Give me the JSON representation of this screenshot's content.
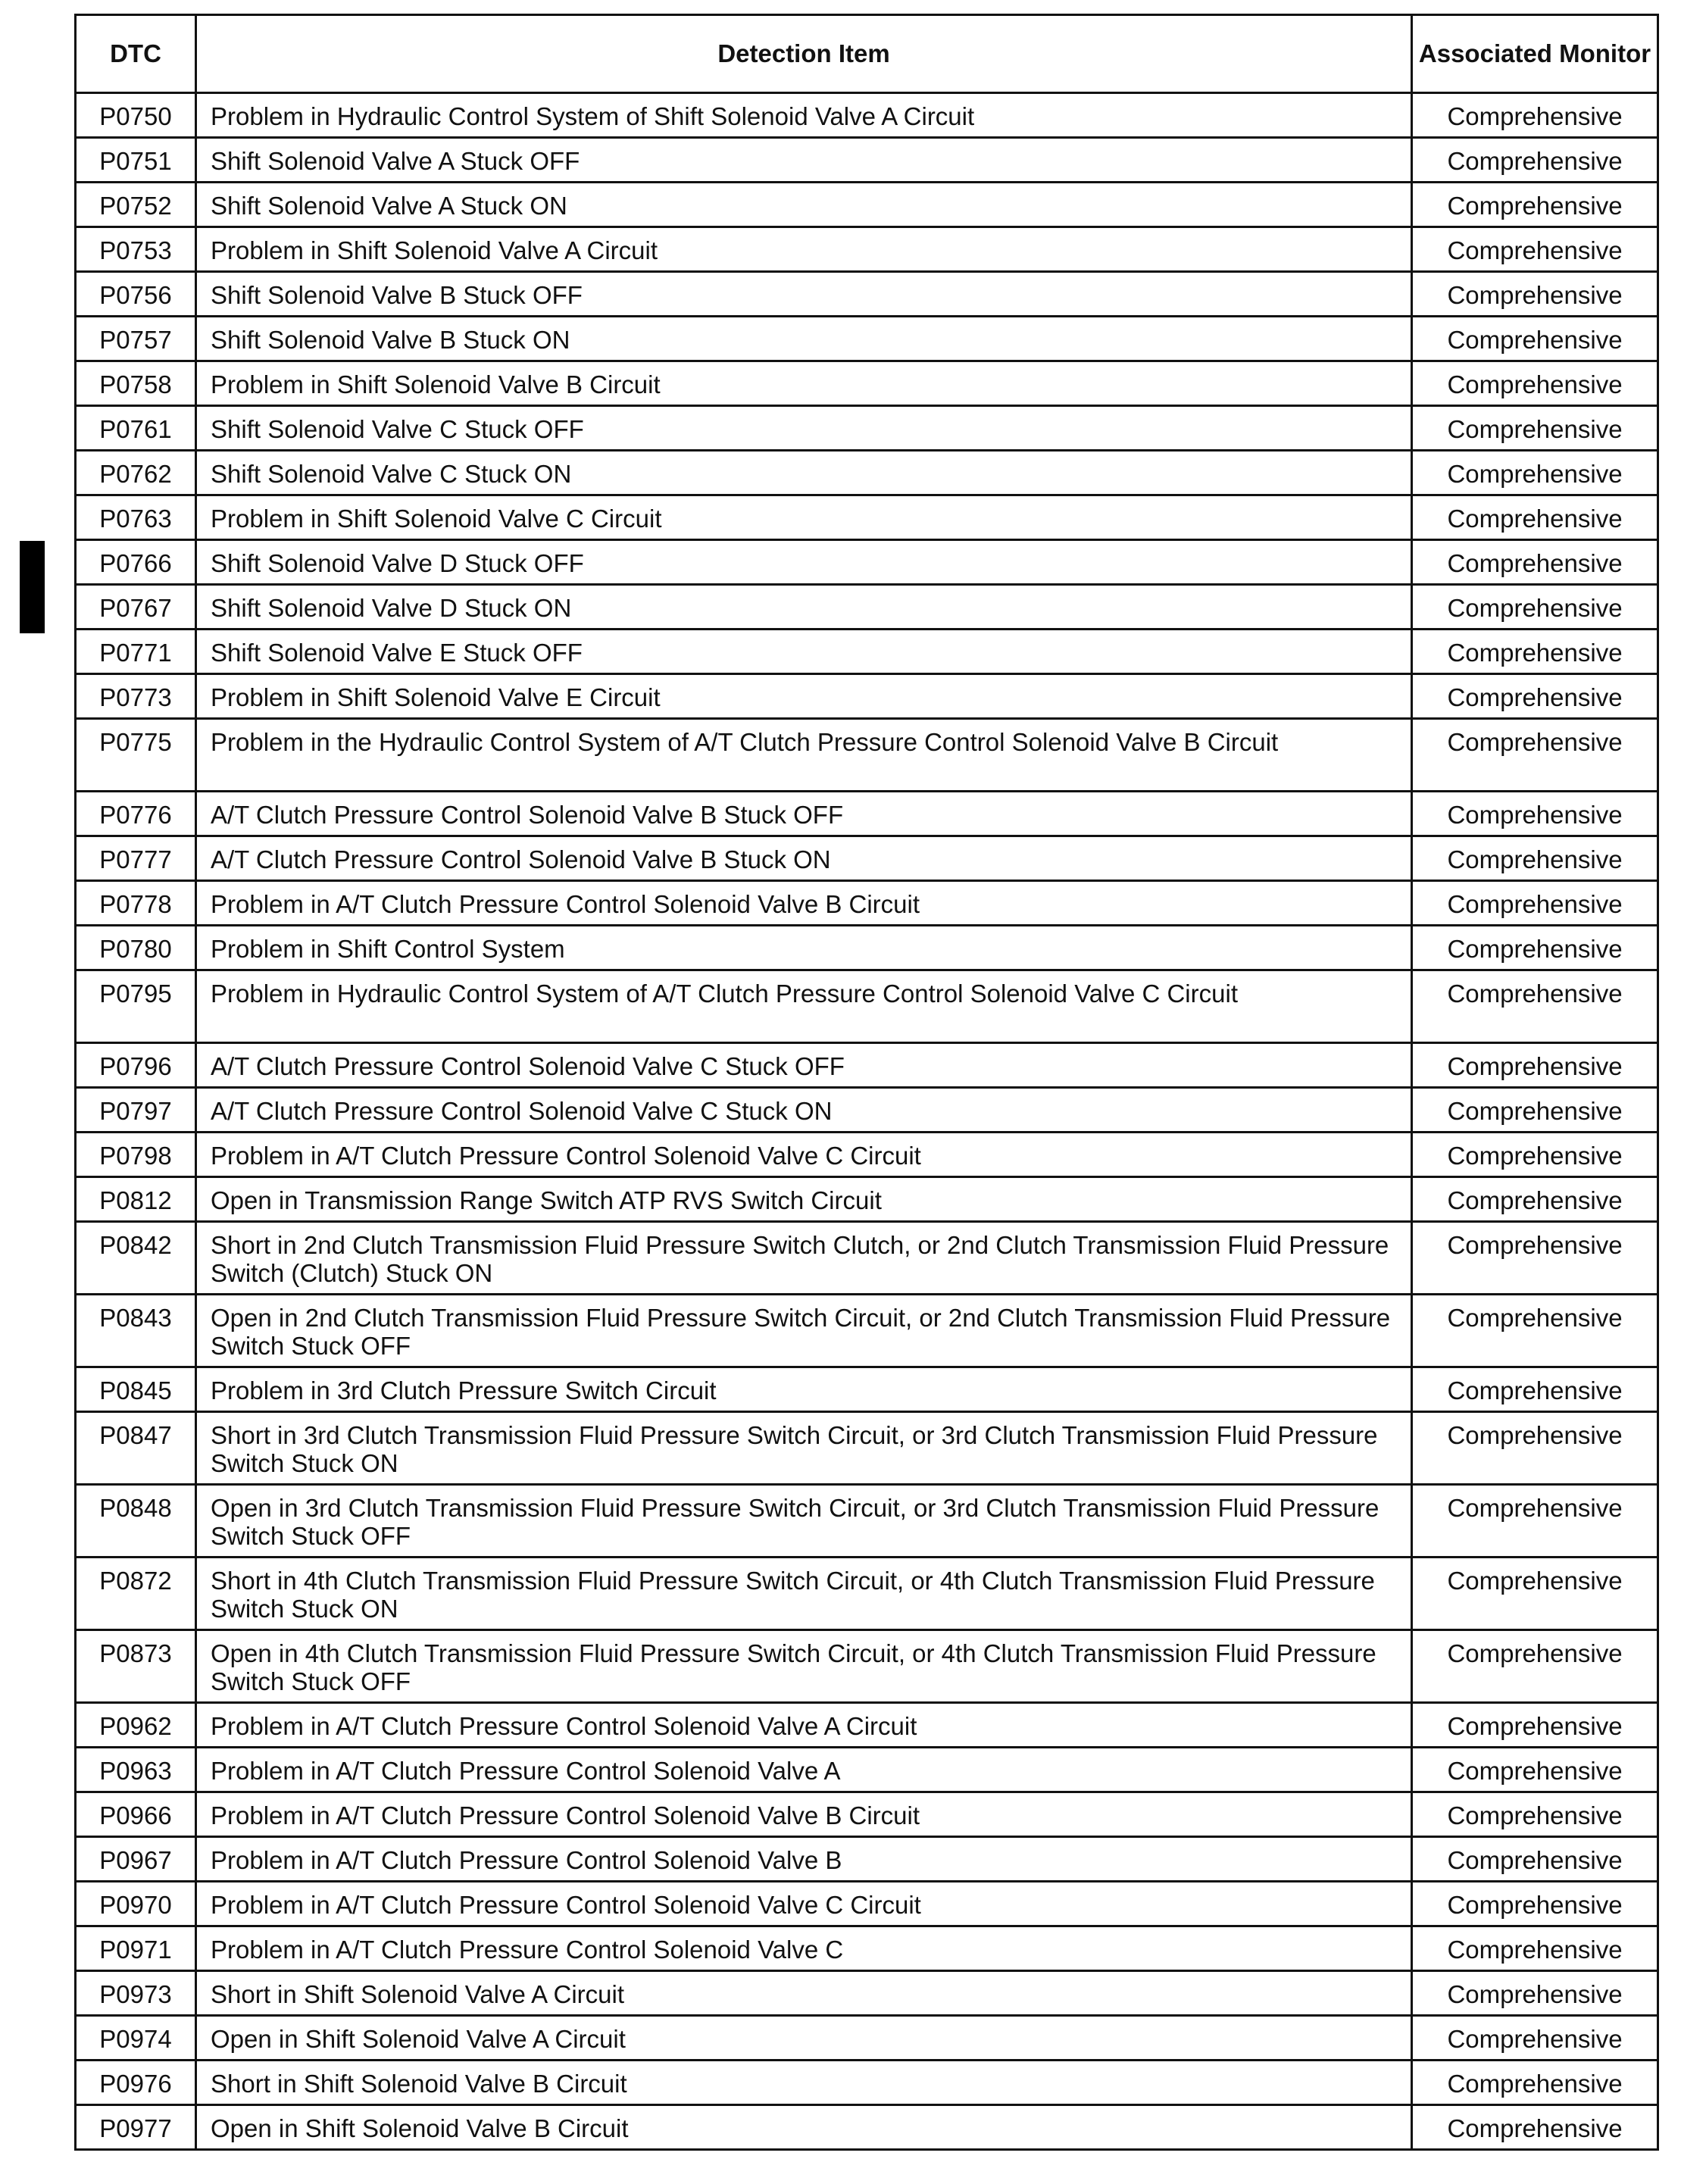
{
  "headers": {
    "dtc": "DTC",
    "item": "Detection Item",
    "monitor": "Associated Monitor"
  },
  "rows": [
    [
      "P0750",
      "Problem in Hydraulic Control System of Shift Solenoid Valve A Circuit",
      "Comprehensive"
    ],
    [
      "P0751",
      "Shift Solenoid Valve A Stuck OFF",
      "Comprehensive"
    ],
    [
      "P0752",
      "Shift Solenoid Valve A Stuck ON",
      "Comprehensive"
    ],
    [
      "P0753",
      "Problem in Shift Solenoid Valve A Circuit",
      "Comprehensive"
    ],
    [
      "P0756",
      "Shift Solenoid Valve B Stuck OFF",
      "Comprehensive"
    ],
    [
      "P0757",
      "Shift Solenoid Valve B Stuck ON",
      "Comprehensive"
    ],
    [
      "P0758",
      "Problem in Shift Solenoid Valve B Circuit",
      "Comprehensive"
    ],
    [
      "P0761",
      "Shift Solenoid Valve C Stuck OFF",
      "Comprehensive"
    ],
    [
      "P0762",
      "Shift Solenoid Valve C Stuck ON",
      "Comprehensive"
    ],
    [
      "P0763",
      "Problem in Shift Solenoid Valve C Circuit",
      "Comprehensive"
    ],
    [
      "P0766",
      "Shift Solenoid Valve D Stuck OFF",
      "Comprehensive"
    ],
    [
      "P0767",
      "Shift Solenoid Valve D Stuck ON",
      "Comprehensive"
    ],
    [
      "P0771",
      "Shift Solenoid Valve E Stuck OFF",
      "Comprehensive"
    ],
    [
      "P0773",
      "Problem in Shift Solenoid Valve E Circuit",
      "Comprehensive"
    ],
    [
      "P0775",
      "Problem in the Hydraulic Control System of A/T Clutch Pressure Control Solenoid Valve B Circuit",
      "Comprehensive"
    ],
    [
      "P0776",
      "A/T Clutch Pressure Control Solenoid Valve B Stuck OFF",
      "Comprehensive"
    ],
    [
      "P0777",
      "A/T Clutch Pressure Control Solenoid Valve B Stuck ON",
      "Comprehensive"
    ],
    [
      "P0778",
      "Problem in A/T Clutch Pressure Control Solenoid Valve B Circuit",
      "Comprehensive"
    ],
    [
      "P0780",
      "Problem in Shift Control System",
      "Comprehensive"
    ],
    [
      "P0795",
      "Problem in Hydraulic Control System of A/T Clutch Pressure Control Solenoid Valve C Circuit",
      "Comprehensive"
    ],
    [
      "P0796",
      "A/T Clutch Pressure Control Solenoid Valve C Stuck OFF",
      "Comprehensive"
    ],
    [
      "P0797",
      "A/T Clutch Pressure Control Solenoid Valve C Stuck ON",
      "Comprehensive"
    ],
    [
      "P0798",
      "Problem in A/T Clutch Pressure Control Solenoid Valve C Circuit",
      "Comprehensive"
    ],
    [
      "P0812",
      "Open in Transmission Range Switch ATP RVS Switch Circuit",
      "Comprehensive"
    ],
    [
      "P0842",
      "Short in 2nd Clutch Transmission Fluid Pressure Switch Clutch, or 2nd Clutch Transmission Fluid Pressure Switch (Clutch) Stuck ON",
      "Comprehensive"
    ],
    [
      "P0843",
      "Open in 2nd Clutch Transmission Fluid Pressure Switch Circuit, or 2nd Clutch Transmission Fluid Pressure Switch Stuck OFF",
      "Comprehensive"
    ],
    [
      "P0845",
      "Problem in 3rd Clutch Pressure Switch Circuit",
      "Comprehensive"
    ],
    [
      "P0847",
      "Short in 3rd Clutch Transmission Fluid Pressure Switch Circuit, or 3rd Clutch Transmission Fluid Pressure Switch Stuck ON",
      "Comprehensive"
    ],
    [
      "P0848",
      "Open in 3rd Clutch Transmission Fluid Pressure Switch Circuit, or 3rd Clutch Transmission Fluid Pressure Switch Stuck OFF",
      "Comprehensive"
    ],
    [
      "P0872",
      "Short in 4th Clutch Transmission Fluid Pressure Switch Circuit, or 4th Clutch Transmission Fluid Pressure Switch Stuck ON",
      "Comprehensive"
    ],
    [
      "P0873",
      "Open in 4th Clutch Transmission Fluid Pressure Switch Circuit, or 4th Clutch Transmission Fluid Pressure Switch Stuck OFF",
      "Comprehensive"
    ],
    [
      "P0962",
      "Problem in A/T Clutch Pressure Control Solenoid Valve A Circuit",
      "Comprehensive"
    ],
    [
      "P0963",
      "Problem in A/T Clutch Pressure Control Solenoid Valve A",
      "Comprehensive"
    ],
    [
      "P0966",
      "Problem in A/T Clutch Pressure Control Solenoid Valve B Circuit",
      "Comprehensive"
    ],
    [
      "P0967",
      "Problem in A/T Clutch Pressure Control Solenoid Valve B",
      "Comprehensive"
    ],
    [
      "P0970",
      "Problem in A/T Clutch Pressure Control Solenoid Valve C Circuit",
      "Comprehensive"
    ],
    [
      "P0971",
      "Problem in A/T Clutch Pressure Control Solenoid Valve C",
      "Comprehensive"
    ],
    [
      "P0973",
      "Short in Shift Solenoid Valve A Circuit",
      "Comprehensive"
    ],
    [
      "P0974",
      "Open in Shift Solenoid Valve A Circuit",
      "Comprehensive"
    ],
    [
      "P0976",
      "Short in Shift Solenoid Valve B Circuit",
      "Comprehensive"
    ],
    [
      "P0977",
      "Open in Shift Solenoid Valve B Circuit",
      "Comprehensive"
    ]
  ]
}
